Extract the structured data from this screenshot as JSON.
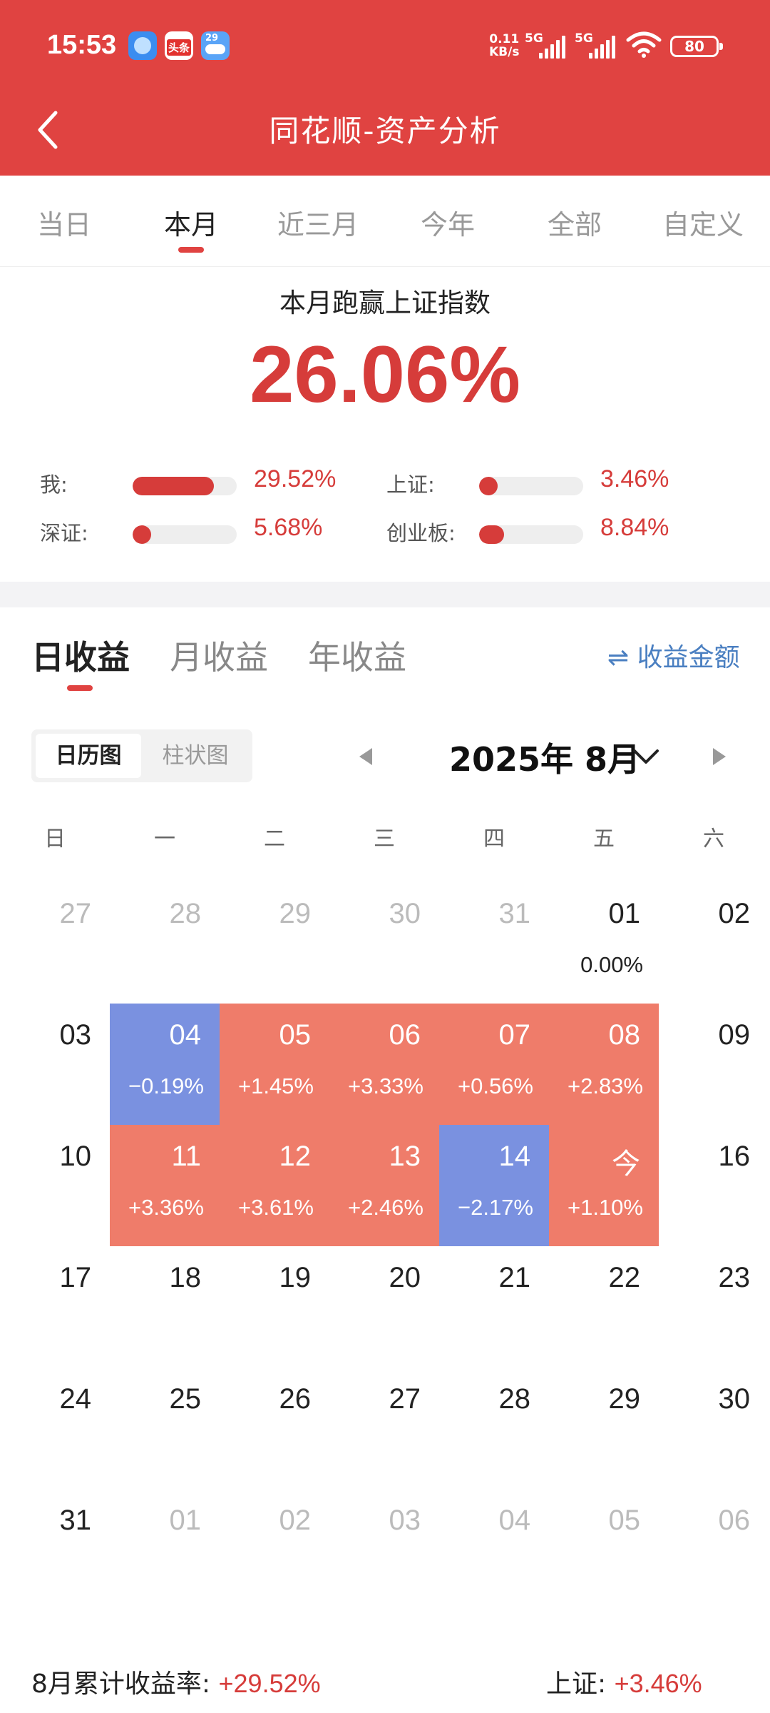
{
  "status": {
    "time": "15:53",
    "news_icon_text": "头条",
    "weather_icon_text": "29",
    "net_speed": "0.11",
    "net_unit": "KB/s",
    "sim1": "5G",
    "sim2": "5G",
    "battery": "80"
  },
  "header": {
    "title": "同花顺-资产分析"
  },
  "tabs": [
    "当日",
    "本月",
    "近三月",
    "今年",
    "全部",
    "自定义"
  ],
  "summary": {
    "title": "本月跑赢上证指数",
    "value": "26.06%",
    "comparisons": [
      {
        "label": "我:",
        "value": "29.52%",
        "fraction": 0.78
      },
      {
        "label": "上证:",
        "value": "3.46%",
        "fraction": 0.1
      },
      {
        "label": "深证:",
        "value": "5.68%",
        "fraction": 0.14
      },
      {
        "label": "创业板:",
        "value": "8.84%",
        "fraction": 0.24
      }
    ]
  },
  "earnings_tabs": [
    "日收益",
    "月收益",
    "年收益"
  ],
  "toggle_amount": "⇌ 收益金额",
  "view_switch": [
    "日历图",
    "柱状图"
  ],
  "month": "2025年 8月",
  "weekdays": [
    "日",
    "一",
    "二",
    "三",
    "四",
    "五",
    "六"
  ],
  "calendar": [
    [
      {
        "d": "27",
        "m": true
      },
      {
        "d": "28",
        "m": true
      },
      {
        "d": "29",
        "m": true
      },
      {
        "d": "30",
        "m": true
      },
      {
        "d": "31",
        "m": true
      },
      {
        "d": "01",
        "p": "0.00%",
        "t": "zero"
      },
      {
        "d": "02"
      }
    ],
    [
      {
        "d": "03"
      },
      {
        "d": "04",
        "p": "−0.19%",
        "t": "neg"
      },
      {
        "d": "05",
        "p": "+1.45%",
        "t": "pos"
      },
      {
        "d": "06",
        "p": "+3.33%",
        "t": "pos"
      },
      {
        "d": "07",
        "p": "+0.56%",
        "t": "pos"
      },
      {
        "d": "08",
        "p": "+2.83%",
        "t": "pos"
      },
      {
        "d": "09"
      }
    ],
    [
      {
        "d": "10"
      },
      {
        "d": "11",
        "p": "+3.36%",
        "t": "pos"
      },
      {
        "d": "12",
        "p": "+3.61%",
        "t": "pos"
      },
      {
        "d": "13",
        "p": "+2.46%",
        "t": "pos"
      },
      {
        "d": "14",
        "p": "−2.17%",
        "t": "neg"
      },
      {
        "d": "今",
        "p": "+1.10%",
        "t": "pos"
      },
      {
        "d": "16"
      }
    ],
    [
      {
        "d": "17"
      },
      {
        "d": "18"
      },
      {
        "d": "19"
      },
      {
        "d": "20"
      },
      {
        "d": "21"
      },
      {
        "d": "22"
      },
      {
        "d": "23"
      }
    ],
    [
      {
        "d": "24"
      },
      {
        "d": "25"
      },
      {
        "d": "26"
      },
      {
        "d": "27"
      },
      {
        "d": "28"
      },
      {
        "d": "29"
      },
      {
        "d": "30"
      }
    ],
    [
      {
        "d": "31"
      },
      {
        "d": "01",
        "m": true
      },
      {
        "d": "02",
        "m": true
      },
      {
        "d": "03",
        "m": true
      },
      {
        "d": "04",
        "m": true
      },
      {
        "d": "05",
        "m": true
      },
      {
        "d": "06",
        "m": true
      }
    ]
  ],
  "footer": {
    "left_label": "8月累计收益率:",
    "left_value": "+29.52%",
    "right_label": "上证:",
    "right_value": "+3.46%"
  },
  "colors": {
    "brand_red": "#e04341",
    "positive": "#ef7c6a",
    "negative": "#7a91e0",
    "link_blue": "#4a7fc1"
  }
}
